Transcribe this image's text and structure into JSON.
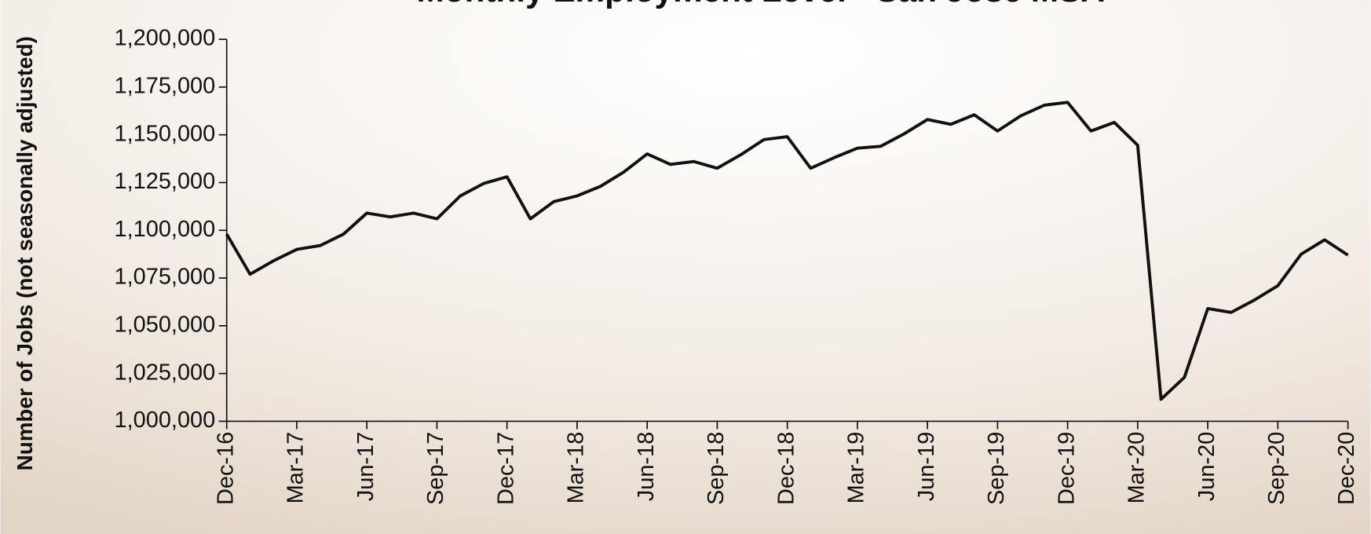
{
  "chart_data": {
    "type": "line",
    "title": "Monthly Employment Level - San Jose MSA",
    "y_axis_label": "Number of Jobs (not seasonally adjusted)",
    "categories": [
      "Dec-16",
      null,
      null,
      "Mar-17",
      null,
      null,
      "Jun-17",
      null,
      null,
      "Sep-17",
      null,
      null,
      "Dec-17",
      null,
      null,
      "Mar-18",
      null,
      null,
      "Jun-18",
      null,
      null,
      "Sep-18",
      null,
      null,
      "Dec-18",
      null,
      null,
      "Mar-19",
      null,
      null,
      "Jun-19",
      null,
      null,
      "Sep-19",
      null,
      null,
      "Dec-19",
      null,
      null,
      "Mar-20",
      null,
      null,
      "Jun-20",
      null,
      null,
      "Sep-20",
      null,
      null,
      "Dec-20"
    ],
    "values": [
      1098000,
      1077000,
      1084000,
      1090000,
      1092000,
      1098000,
      1109000,
      1107000,
      1109000,
      1106000,
      1118000,
      1124500,
      1128000,
      1106000,
      1115000,
      1118000,
      1123000,
      1130500,
      1140000,
      1134500,
      1136000,
      1132500,
      1139500,
      1147500,
      1149000,
      1132500,
      1138000,
      1143000,
      1144000,
      1150500,
      1158000,
      1155500,
      1160500,
      1152000,
      1160000,
      1165500,
      1167000,
      1152000,
      1156500,
      1144500,
      1011500,
      1023000,
      1059000,
      1057000,
      1063500,
      1071000,
      1087500,
      1095000,
      1087000
    ],
    "color": "#111111",
    "ylim": [
      1000000,
      1200000
    ],
    "yticks": [
      {
        "value": 1000000,
        "label": "1,000,000"
      },
      {
        "value": 1025000,
        "label": "1,025,000"
      },
      {
        "value": 1050000,
        "label": "1,050,000"
      },
      {
        "value": 1075000,
        "label": "1,075,000"
      },
      {
        "value": 1100000,
        "label": "1,100,000"
      },
      {
        "value": 1125000,
        "label": "1,125,000"
      },
      {
        "value": 1150000,
        "label": "1,150,000"
      },
      {
        "value": 1175000,
        "label": "1,175,000"
      },
      {
        "value": 1200000,
        "label": "1,200,000"
      }
    ],
    "grid": false
  }
}
